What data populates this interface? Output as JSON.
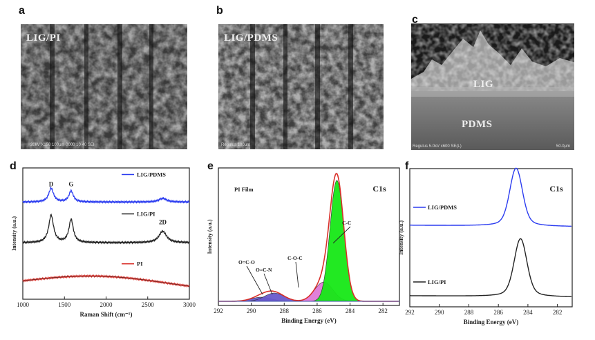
{
  "panels": {
    "a": {
      "letter": "a",
      "label": "LIG/PI",
      "footer": "20kV   X150   100μm   0000   10 40 SEI"
    },
    "b": {
      "letter": "b",
      "label": "LIG/PDMS",
      "footer": "Regulus   100μm"
    },
    "c": {
      "letter": "c",
      "label_top": "LIG",
      "label_bottom": "PDMS",
      "footer_left": "Regulus 5.0kV x600 SE(L)",
      "footer_right": "50.0μm"
    },
    "d": {
      "letter": "d"
    },
    "e": {
      "letter": "e"
    },
    "f": {
      "letter": "f"
    }
  },
  "colors": {
    "blue": "#2b3cf0",
    "black": "#222222",
    "red": "#d9302a",
    "green": "#17e817",
    "magenta": "#e07ad8",
    "purple": "#6a5acd"
  },
  "chart_data": [
    {
      "panel": "d",
      "type": "line",
      "xlabel": "Raman Shift (cm⁻¹)",
      "ylabel": "Intensity (a.u.)",
      "xlim": [
        1000,
        3000
      ],
      "xticks": [
        1000,
        1500,
        2000,
        2500,
        3000
      ],
      "annotations": [
        "D",
        "G",
        "2D"
      ],
      "series": [
        {
          "name": "LIG/PDMS",
          "color": "#2b3cf0",
          "peaks": [
            {
              "x": 1340,
              "height": 0.75
            },
            {
              "x": 1580,
              "height": 0.6
            },
            {
              "x": 2680,
              "height": 0.2
            }
          ],
          "baseline": 0.74
        },
        {
          "name": "LIG/PI",
          "color": "#222222",
          "peaks": [
            {
              "x": 1340,
              "height": 0.95
            },
            {
              "x": 1580,
              "height": 0.8
            },
            {
              "x": 2680,
              "height": 0.4
            }
          ],
          "baseline": 0.43
        },
        {
          "name": "PI",
          "color": "#d9302a",
          "peaks": [],
          "baseline": 0.15
        }
      ]
    },
    {
      "panel": "e",
      "type": "line",
      "title": "C1s",
      "inset": "PI Film",
      "xlabel": "Binding Energy (eV)",
      "ylabel": "Intensity (a.u.)",
      "xlim": [
        292,
        281
      ],
      "xticks": [
        292,
        290,
        288,
        286,
        284,
        282
      ],
      "annotations": [
        "O=C-O",
        "O=C-N",
        "C-O-C",
        "C-C"
      ],
      "components": [
        {
          "name": "C-C",
          "center": 284.8,
          "height": 0.88,
          "color": "#17e817"
        },
        {
          "name": "C-O-C",
          "center": 285.6,
          "height": 0.14,
          "color": "#e07ad8"
        },
        {
          "name": "O=C-N",
          "center": 288.6,
          "height": 0.06,
          "color": "#6a5acd"
        },
        {
          "name": "O=C-O",
          "center": 289.4,
          "height": 0.03,
          "color": "#6a5acd"
        }
      ]
    },
    {
      "panel": "f",
      "type": "line",
      "title": "C1s",
      "xlabel": "Binding Energy (eV)",
      "ylabel": "Intensity (a.u.)",
      "xlim": [
        292,
        281
      ],
      "xticks": [
        292,
        290,
        288,
        286,
        284,
        282
      ],
      "series": [
        {
          "name": "LIG/PDMS",
          "color": "#2b3cf0",
          "center": 284.8,
          "height": 0.42,
          "baseline": 0.58
        },
        {
          "name": "LIG/PI",
          "color": "#222222",
          "center": 284.5,
          "height": 0.42,
          "baseline": 0.07
        }
      ]
    }
  ]
}
